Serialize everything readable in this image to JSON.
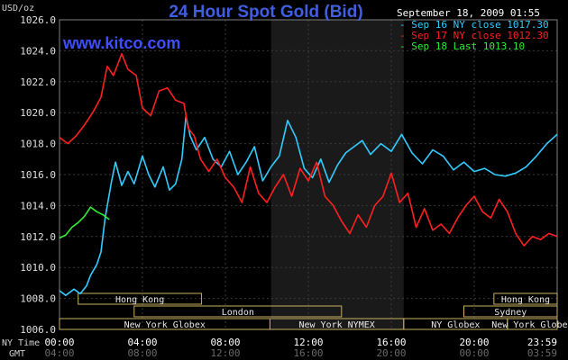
{
  "chart_data": {
    "type": "line",
    "title": "24 Hour Spot Gold (Bid)",
    "watermark": "www.kitco.com",
    "timestamp": "September 18, 2009 01:55",
    "ylabel": "USD/oz",
    "ylim": [
      1006,
      1026
    ],
    "yticks": [
      "1006.0",
      "1008.0",
      "1010.0",
      "1012.0",
      "1014.0",
      "1016.0",
      "1018.0",
      "1020.0",
      "1022.0",
      "1024.0",
      "1026.0"
    ],
    "xlim_hours": [
      0,
      24
    ],
    "ny_time_label": "NY Time",
    "gmt_label": "GMT",
    "ny_ticks": [
      {
        "h": 0,
        "label": "00:00"
      },
      {
        "h": 4,
        "label": "04:00"
      },
      {
        "h": 8,
        "label": "08:00"
      },
      {
        "h": 12,
        "label": "12:00"
      },
      {
        "h": 16,
        "label": "16:00"
      },
      {
        "h": 20,
        "label": "20:00"
      },
      {
        "h": 24,
        "label": "23:59"
      }
    ],
    "gmt_ticks": [
      {
        "h": 0,
        "label": "04:00"
      },
      {
        "h": 4,
        "label": "08:00"
      },
      {
        "h": 8,
        "label": "12:00"
      },
      {
        "h": 12,
        "label": "16:00"
      },
      {
        "h": 16,
        "label": "20:00"
      },
      {
        "h": 20,
        "label": "00:00"
      },
      {
        "h": 24,
        "label": "03:59"
      }
    ],
    "shaded_session_hours": [
      10.2,
      16.6
    ],
    "markets": [
      {
        "label": "Hong Kong",
        "row": 0,
        "start": 0.9,
        "end": 6.85
      },
      {
        "label": "Hong Kong",
        "row": 0,
        "start": 20.95,
        "end": 24
      },
      {
        "label": "London",
        "row": 1,
        "start": 3.6,
        "end": 13.6
      },
      {
        "label": "Sydney",
        "row": 1,
        "start": 19.5,
        "end": 24
      },
      {
        "label": "New York Globex",
        "row": 2,
        "start": 0,
        "end": 10.15
      },
      {
        "label": "New York NYMEX",
        "row": 2,
        "start": 10.15,
        "end": 16.6
      },
      {
        "label": "NY Globex",
        "row": 2,
        "start": 16.6,
        "end": 21.6
      },
      {
        "label": "New York Globex",
        "row": 2,
        "start": 21.6,
        "end": 24
      }
    ],
    "series": [
      {
        "name": "Sep 16 NY close 1017.30",
        "color": "#33ccff",
        "points": [
          [
            0,
            1008.5
          ],
          [
            0.3,
            1008.2
          ],
          [
            0.7,
            1008.6
          ],
          [
            1.0,
            1008.3
          ],
          [
            1.3,
            1008.8
          ],
          [
            1.5,
            1009.5
          ],
          [
            1.8,
            1010.2
          ],
          [
            2.0,
            1011.0
          ],
          [
            2.2,
            1013.2
          ],
          [
            2.5,
            1015.5
          ],
          [
            2.7,
            1016.8
          ],
          [
            3.0,
            1015.3
          ],
          [
            3.3,
            1016.2
          ],
          [
            3.6,
            1015.4
          ],
          [
            4.0,
            1017.2
          ],
          [
            4.3,
            1016.0
          ],
          [
            4.6,
            1015.2
          ],
          [
            5.0,
            1016.5
          ],
          [
            5.3,
            1015.0
          ],
          [
            5.6,
            1015.4
          ],
          [
            5.9,
            1017.0
          ],
          [
            6.1,
            1019.8
          ],
          [
            6.3,
            1018.5
          ],
          [
            6.6,
            1017.6
          ],
          [
            7.0,
            1018.4
          ],
          [
            7.4,
            1017.0
          ],
          [
            7.8,
            1016.5
          ],
          [
            8.2,
            1017.5
          ],
          [
            8.6,
            1016.0
          ],
          [
            9.0,
            1016.8
          ],
          [
            9.4,
            1017.8
          ],
          [
            9.8,
            1015.6
          ],
          [
            10.2,
            1016.5
          ],
          [
            10.6,
            1017.2
          ],
          [
            11.0,
            1019.5
          ],
          [
            11.4,
            1018.4
          ],
          [
            11.8,
            1016.4
          ],
          [
            12.2,
            1015.8
          ],
          [
            12.6,
            1017.0
          ],
          [
            13.0,
            1015.5
          ],
          [
            13.4,
            1016.6
          ],
          [
            13.8,
            1017.4
          ],
          [
            14.2,
            1017.8
          ],
          [
            14.6,
            1018.2
          ],
          [
            15.0,
            1017.3
          ],
          [
            15.5,
            1018.0
          ],
          [
            16.0,
            1017.5
          ],
          [
            16.5,
            1018.6
          ],
          [
            17.0,
            1017.4
          ],
          [
            17.5,
            1016.7
          ],
          [
            18.0,
            1017.6
          ],
          [
            18.5,
            1017.2
          ],
          [
            19.0,
            1016.3
          ],
          [
            19.5,
            1016.8
          ],
          [
            20.0,
            1016.2
          ],
          [
            20.5,
            1016.4
          ],
          [
            21.0,
            1016.0
          ],
          [
            21.5,
            1015.9
          ],
          [
            22.0,
            1016.1
          ],
          [
            22.5,
            1016.5
          ],
          [
            23.0,
            1017.2
          ],
          [
            23.5,
            1018.0
          ],
          [
            24.0,
            1018.6
          ]
        ]
      },
      {
        "name": "Sep 17 NY close 1012.30",
        "color": "#ff2020",
        "points": [
          [
            0,
            1018.4
          ],
          [
            0.4,
            1018.0
          ],
          [
            0.8,
            1018.5
          ],
          [
            1.2,
            1019.2
          ],
          [
            1.6,
            1020.0
          ],
          [
            2.0,
            1021.0
          ],
          [
            2.3,
            1023.0
          ],
          [
            2.6,
            1022.4
          ],
          [
            3.0,
            1023.8
          ],
          [
            3.3,
            1022.8
          ],
          [
            3.7,
            1022.4
          ],
          [
            4.0,
            1020.3
          ],
          [
            4.4,
            1019.8
          ],
          [
            4.8,
            1021.4
          ],
          [
            5.2,
            1021.6
          ],
          [
            5.6,
            1020.8
          ],
          [
            6.0,
            1020.6
          ],
          [
            6.2,
            1019.0
          ],
          [
            6.5,
            1018.5
          ],
          [
            6.8,
            1017.0
          ],
          [
            7.2,
            1016.2
          ],
          [
            7.6,
            1017.0
          ],
          [
            8.0,
            1015.8
          ],
          [
            8.4,
            1015.2
          ],
          [
            8.8,
            1014.2
          ],
          [
            9.2,
            1016.5
          ],
          [
            9.6,
            1014.8
          ],
          [
            10.0,
            1014.2
          ],
          [
            10.4,
            1015.2
          ],
          [
            10.8,
            1016.0
          ],
          [
            11.2,
            1014.6
          ],
          [
            11.6,
            1016.4
          ],
          [
            12.0,
            1015.6
          ],
          [
            12.4,
            1016.8
          ],
          [
            12.8,
            1014.6
          ],
          [
            13.2,
            1014.0
          ],
          [
            13.6,
            1013.0
          ],
          [
            14.0,
            1012.2
          ],
          [
            14.4,
            1013.4
          ],
          [
            14.8,
            1012.6
          ],
          [
            15.2,
            1014.0
          ],
          [
            15.6,
            1014.6
          ],
          [
            16.0,
            1016.1
          ],
          [
            16.4,
            1014.2
          ],
          [
            16.8,
            1014.8
          ],
          [
            17.2,
            1012.6
          ],
          [
            17.6,
            1013.8
          ],
          [
            18.0,
            1012.4
          ],
          [
            18.4,
            1012.8
          ],
          [
            18.8,
            1012.2
          ],
          [
            19.2,
            1013.2
          ],
          [
            19.6,
            1014.0
          ],
          [
            20.0,
            1014.6
          ],
          [
            20.4,
            1013.6
          ],
          [
            20.8,
            1013.2
          ],
          [
            21.2,
            1014.4
          ],
          [
            21.6,
            1013.6
          ],
          [
            22.0,
            1012.2
          ],
          [
            22.4,
            1011.4
          ],
          [
            22.8,
            1012.0
          ],
          [
            23.2,
            1011.8
          ],
          [
            23.6,
            1012.2
          ],
          [
            24.0,
            1012.0
          ]
        ]
      },
      {
        "name": "Sep 18 Last 1013.10",
        "color": "#33ee33",
        "points": [
          [
            0,
            1011.9
          ],
          [
            0.3,
            1012.1
          ],
          [
            0.6,
            1012.6
          ],
          [
            0.9,
            1012.9
          ],
          [
            1.2,
            1013.3
          ],
          [
            1.5,
            1013.9
          ],
          [
            1.8,
            1013.6
          ],
          [
            2.1,
            1013.4
          ],
          [
            2.4,
            1013.1
          ]
        ]
      }
    ]
  }
}
